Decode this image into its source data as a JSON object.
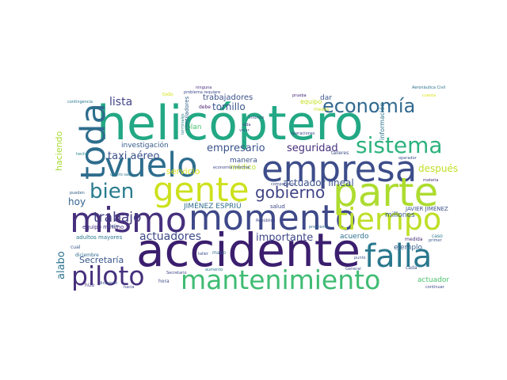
{
  "word_cloud": {
    "words": [
      {
        "text": "helicóptero",
        "color": "#22a884"
      },
      {
        "text": "accidente",
        "color": "#3b1e6e"
      },
      {
        "text": "mismo",
        "color": "#46307d"
      },
      {
        "text": "momento",
        "color": "#3e4989"
      },
      {
        "text": "empresa",
        "color": "#3d4d8a"
      },
      {
        "text": "parte",
        "color": "#addc30"
      },
      {
        "text": "gente",
        "color": "#cde11d"
      },
      {
        "text": "vuelo",
        "color": "#2d6e8e"
      },
      {
        "text": "toda",
        "color": "#2e6d8e"
      },
      {
        "text": "tiempo",
        "color": "#bddf26"
      },
      {
        "text": "falla",
        "color": "#2a788e"
      },
      {
        "text": "mantenimiento",
        "color": "#3fbc73"
      },
      {
        "text": "piloto",
        "color": "#46307d"
      },
      {
        "text": "sistema",
        "color": "#2db27d"
      },
      {
        "text": "economía",
        "color": "#31688e"
      },
      {
        "text": "bien",
        "color": "#287c8e"
      },
      {
        "text": "gobierno",
        "color": "#414487"
      },
      {
        "text": "trabajo",
        "color": "#433e85"
      },
      {
        "text": "lista",
        "color": "#414487"
      },
      {
        "text": "empresario",
        "color": "#3a538b"
      },
      {
        "text": "seguridad",
        "color": "#46307d"
      },
      {
        "text": "taxi aéreo",
        "color": "#3b528b"
      },
      {
        "text": "actuadores",
        "color": "#3e4989"
      },
      {
        "text": "importante",
        "color": "#3f4788"
      },
      {
        "text": "hoy",
        "color": "#33638d"
      },
      {
        "text": "alabo",
        "color": "#2c738e"
      },
      {
        "text": "tornillo",
        "color": "#39568c"
      },
      {
        "text": "actuador lineal",
        "color": "#3b528b"
      },
      {
        "text": "servicio",
        "color": "#e1e41c"
      },
      {
        "text": "después",
        "color": "#c2df23"
      },
      {
        "text": "Secretaría",
        "color": "#39568c"
      },
      {
        "text": "trabajadores",
        "color": "#3b518b"
      },
      {
        "text": "haciendo",
        "color": "#a8db34"
      },
      {
        "text": "JIMÉNEZ ESPRIÚ",
        "color": "#2f6c8e"
      },
      {
        "text": "manera",
        "color": "#3a548c"
      },
      {
        "text": "investigación",
        "color": "#365c8d"
      },
      {
        "text": "ejemplo",
        "color": "#355f8d"
      },
      {
        "text": "acuerdo",
        "color": "#2c718e"
      },
      {
        "text": "dar",
        "color": "#39558c"
      },
      {
        "text": "plan",
        "color": "#46c06f"
      },
      {
        "text": "médico",
        "color": "#b5de2b"
      },
      {
        "text": "actuador",
        "color": "#4ac16d"
      },
      {
        "text": "equipo",
        "color": "#c5e021"
      },
      {
        "text": "información",
        "color": "#2c738e"
      },
      {
        "text": "millones",
        "color": "#38598c"
      },
      {
        "text": "JAVIER JIMÉNEZ",
        "color": "#3b528b"
      },
      {
        "text": "equipo mínimo",
        "color": "#46327e"
      },
      {
        "text": "adultos mayores",
        "color": "#2a788e"
      },
      {
        "text": "ventiladores",
        "color": "#34618d"
      },
      {
        "text": "salud",
        "color": "#3e4989"
      },
      {
        "text": "componente",
        "color": "#3e4989"
      },
      {
        "text": "medida",
        "color": "#46307d"
      },
      {
        "text": "contingencia",
        "color": "#2a788e"
      },
      {
        "text": "terminales",
        "color": "#27808e"
      },
      {
        "text": "caso",
        "color": "#2a788e"
      },
      {
        "text": "cual",
        "color": "#39568c"
      },
      {
        "text": "diciembre",
        "color": "#2f6c8e"
      },
      {
        "text": "hora",
        "color": "#3e4989"
      },
      {
        "text": "hizo",
        "color": "#453781"
      },
      {
        "text": "hacia",
        "color": "#3f4788"
      },
      {
        "text": "punto",
        "color": "#3a548c"
      },
      {
        "text": "cada",
        "color": "#3b528b"
      },
      {
        "text": "primer",
        "color": "#38588c"
      },
      {
        "text": "continuar",
        "color": "#3e4c8a"
      },
      {
        "text": "programa",
        "color": "#32648e"
      },
      {
        "text": "talleres",
        "color": "#3d4d8a"
      },
      {
        "text": "pueden",
        "color": "#33638d"
      },
      {
        "text": "operador",
        "color": "#3b518b"
      },
      {
        "text": "meses",
        "color": "#cde11d"
      },
      {
        "text": "informe",
        "color": "#3a548c"
      },
      {
        "text": "vida",
        "color": "#443b84"
      },
      {
        "text": "debe",
        "color": "#482071"
      },
      {
        "text": "taller",
        "color": "#3c4f8a"
      },
      {
        "text": "aumento",
        "color": "#2a788e"
      },
      {
        "text": "República",
        "color": "#3f4788"
      },
      {
        "text": "ninguna",
        "color": "#472d7b"
      },
      {
        "text": "prueba",
        "color": "#482878"
      },
      {
        "text": "todo",
        "color": "#d5e21a"
      },
      {
        "text": "cuenta",
        "color": "#dde318"
      },
      {
        "text": "Aeronáutica Civil",
        "color": "#2c728e"
      },
      {
        "text": "mano",
        "color": "#2f6c8e"
      },
      {
        "text": "hecho",
        "color": "#25838e"
      },
      {
        "text": "algún",
        "color": "#3d4d8a"
      },
      {
        "text": "dictamen",
        "color": "#3b518b"
      },
      {
        "text": "volar",
        "color": "#355f8d"
      },
      {
        "text": "economía informal",
        "color": "#3f4788"
      },
      {
        "text": "problema requiere",
        "color": "#3e4989"
      },
      {
        "text": "operaciones",
        "color": "#3e4989"
      },
      {
        "text": "quiero saca",
        "color": "#2a788e"
      },
      {
        "text": "materia",
        "color": "#46307d"
      },
      {
        "text": "Secretario",
        "color": "#3f4788"
      },
      {
        "text": "General",
        "color": "#3c508b"
      }
    ]
  }
}
